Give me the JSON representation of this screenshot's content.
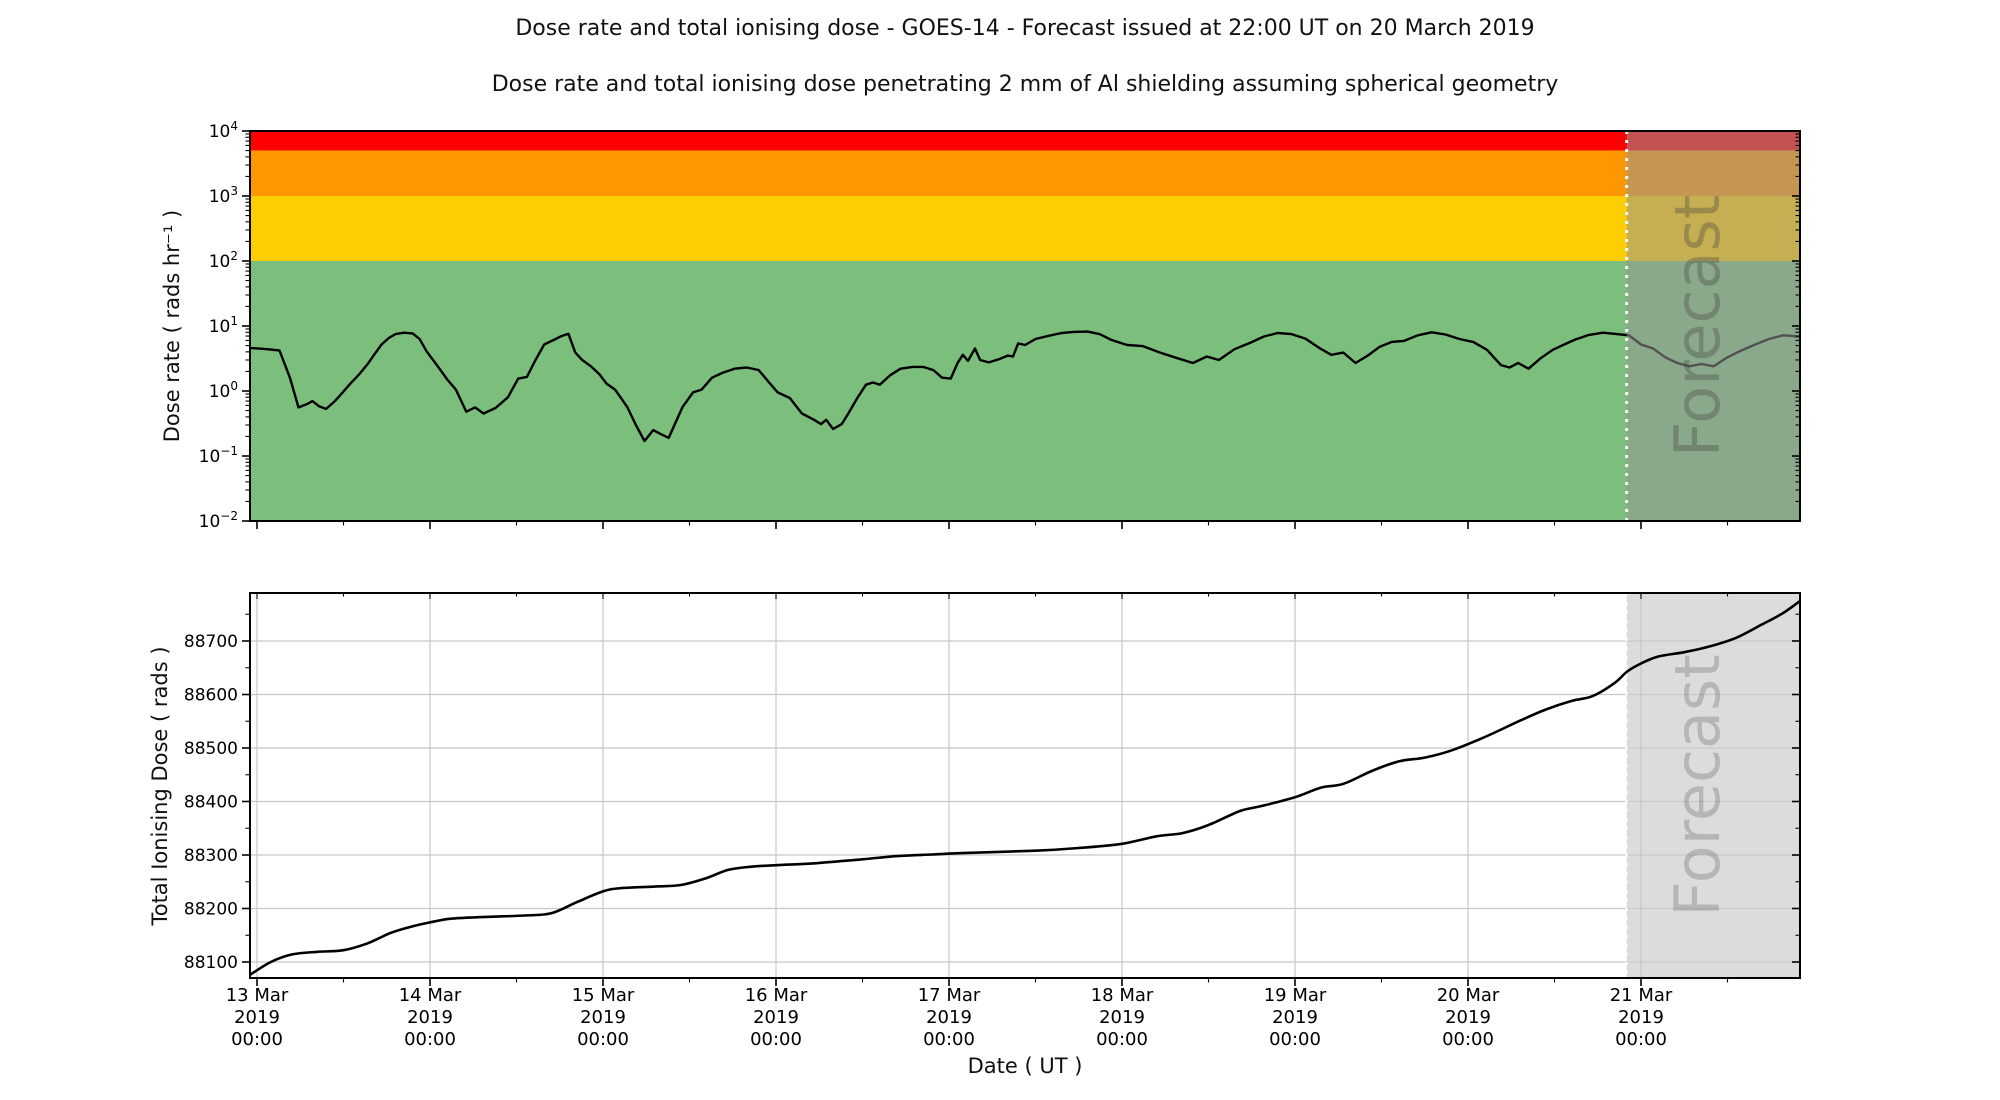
{
  "page": {
    "title": "Dose rate and total ionising dose - GOES-14 - Forecast issued at 22:00 UT on 20 March 2019",
    "subtitle": "Dose rate and total ionising dose penetrating 2 mm of Al shielding assuming spherical geometry"
  },
  "colors": {
    "band_red": "#ff0000",
    "band_orange": "#ff9800",
    "band_yellow": "#ffce00",
    "band_green": "#7cbe7c",
    "line": "#000000",
    "grid": "#c8c8c8",
    "forecast_overlay_top": "rgba(150,150,150,0.55)",
    "forecast_fill_bottom": "#dcdcdc",
    "forecast_divider": "#ffffff",
    "forecast_text_top": "rgba(64,64,64,0.33)",
    "forecast_text_bottom": "rgba(64,64,64,0.24)"
  },
  "forecast": {
    "label": "Forecast",
    "start_day": 7.917
  },
  "x_axis": {
    "label": "Date ( UT )",
    "start_day": -0.04,
    "end_day": 8.92,
    "tick_days": [
      0,
      1,
      2,
      3,
      4,
      5,
      6,
      7,
      8
    ],
    "tick_labels": [
      {
        "date": "13 Mar",
        "year": "2019",
        "time": "00:00"
      },
      {
        "date": "14 Mar",
        "year": "2019",
        "time": "00:00"
      },
      {
        "date": "15 Mar",
        "year": "2019",
        "time": "00:00"
      },
      {
        "date": "16 Mar",
        "year": "2019",
        "time": "00:00"
      },
      {
        "date": "17 Mar",
        "year": "2019",
        "time": "00:00"
      },
      {
        "date": "18 Mar",
        "year": "2019",
        "time": "00:00"
      },
      {
        "date": "19 Mar",
        "year": "2019",
        "time": "00:00"
      },
      {
        "date": "20 Mar",
        "year": "2019",
        "time": "00:00"
      },
      {
        "date": "21 Mar",
        "year": "2019",
        "time": "00:00"
      }
    ]
  },
  "chart_data": [
    {
      "type": "line",
      "panel": "dose_rate",
      "ylabel": "Dose rate ( rads hr⁻¹ )",
      "yscale": "log",
      "ylim": [
        0.01,
        10000
      ],
      "ytick_exponents": [
        "4",
        "3",
        "2",
        "1",
        "0",
        "−1",
        "−2"
      ],
      "grid": false,
      "bands": [
        {
          "name": "red",
          "from": 5000,
          "to": 10000
        },
        {
          "name": "orange",
          "from": 1000,
          "to": 5000
        },
        {
          "name": "yellow",
          "from": 100,
          "to": 1000
        },
        {
          "name": "green",
          "from": 0.01,
          "to": 100
        }
      ],
      "series": [
        {
          "name": "dose_rate",
          "x_days": [
            -0.04,
            0.06,
            0.13,
            0.19,
            0.24,
            0.29,
            0.32,
            0.36,
            0.4,
            0.45,
            0.49,
            0.54,
            0.59,
            0.64,
            0.68,
            0.72,
            0.76,
            0.8,
            0.85,
            0.9,
            0.94,
            0.98,
            1.04,
            1.1,
            1.15,
            1.21,
            1.26,
            1.31,
            1.38,
            1.45,
            1.51,
            1.56,
            1.61,
            1.66,
            1.72,
            1.76,
            1.8,
            1.84,
            1.88,
            1.93,
            1.98,
            2.02,
            2.07,
            2.14,
            2.19,
            2.24,
            2.29,
            2.33,
            2.38,
            2.46,
            2.52,
            2.57,
            2.63,
            2.69,
            2.76,
            2.83,
            2.9,
            2.96,
            3.01,
            3.08,
            3.15,
            3.22,
            3.26,
            3.29,
            3.33,
            3.38,
            3.42,
            3.47,
            3.52,
            3.56,
            3.6,
            3.66,
            3.72,
            3.79,
            3.85,
            3.91,
            3.96,
            4.01,
            4.05,
            4.08,
            4.11,
            4.15,
            4.18,
            4.23,
            4.29,
            4.34,
            4.37,
            4.4,
            4.44,
            4.5,
            4.57,
            4.65,
            4.72,
            4.8,
            4.87,
            4.94,
            5.03,
            5.12,
            5.22,
            5.32,
            5.41,
            5.49,
            5.56,
            5.65,
            5.74,
            5.82,
            5.9,
            5.98,
            6.06,
            6.14,
            6.21,
            6.28,
            6.35,
            6.42,
            6.49,
            6.56,
            6.63,
            6.71,
            6.79,
            6.87,
            6.95,
            7.03,
            7.11,
            7.19,
            7.24,
            7.29,
            7.35,
            7.42,
            7.49,
            7.55,
            7.62,
            7.7,
            7.78,
            7.86,
            7.93,
            8.0,
            8.07,
            8.14,
            8.21,
            8.28,
            8.35,
            8.42,
            8.5,
            8.58,
            8.66,
            8.74,
            8.82,
            8.88,
            8.92
          ],
          "values": [
            4.6,
            4.4,
            4.2,
            1.6,
            0.56,
            0.63,
            0.7,
            0.58,
            0.53,
            0.7,
            0.92,
            1.3,
            1.8,
            2.6,
            3.7,
            5.2,
            6.5,
            7.5,
            7.9,
            7.7,
            6.3,
            4.1,
            2.5,
            1.5,
            1.05,
            0.48,
            0.56,
            0.45,
            0.55,
            0.8,
            1.55,
            1.65,
            3.0,
            5.2,
            6.2,
            7.0,
            7.6,
            3.9,
            3.0,
            2.4,
            1.8,
            1.3,
            1.05,
            0.57,
            0.3,
            0.17,
            0.25,
            0.22,
            0.19,
            0.57,
            0.95,
            1.05,
            1.6,
            1.9,
            2.2,
            2.3,
            2.1,
            1.35,
            0.95,
            0.78,
            0.45,
            0.36,
            0.31,
            0.36,
            0.26,
            0.31,
            0.46,
            0.78,
            1.25,
            1.35,
            1.25,
            1.75,
            2.2,
            2.35,
            2.35,
            2.1,
            1.6,
            1.55,
            2.7,
            3.6,
            2.9,
            4.5,
            3.0,
            2.75,
            3.1,
            3.5,
            3.4,
            5.4,
            5.1,
            6.3,
            7.0,
            7.8,
            8.1,
            8.2,
            7.5,
            6.1,
            5.1,
            4.9,
            3.9,
            3.2,
            2.7,
            3.4,
            3.0,
            4.4,
            5.5,
            6.9,
            7.8,
            7.5,
            6.4,
            4.6,
            3.6,
            3.9,
            2.7,
            3.5,
            4.8,
            5.7,
            5.9,
            7.2,
            8.0,
            7.4,
            6.3,
            5.7,
            4.3,
            2.5,
            2.3,
            2.7,
            2.2,
            3.2,
            4.3,
            5.1,
            6.2,
            7.3,
            7.9,
            7.5,
            7.2,
            5.2,
            4.5,
            3.3,
            2.7,
            2.4,
            2.6,
            2.4,
            3.3,
            4.2,
            5.2,
            6.3,
            7.2,
            7.0,
            6.8
          ]
        }
      ]
    },
    {
      "type": "line",
      "panel": "total_dose",
      "ylabel": "Total Ionising Dose ( rads )",
      "xlabel": "Date ( UT )",
      "yscale": "linear",
      "ylim": [
        88070,
        88790
      ],
      "yticks": [
        88100,
        88200,
        88300,
        88400,
        88500,
        88600,
        88700
      ],
      "grid": true,
      "series": [
        {
          "name": "total_ionising_dose",
          "x_days": [
            -0.04,
            0.08,
            0.2,
            0.35,
            0.5,
            0.64,
            0.77,
            0.88,
            1.0,
            1.12,
            1.3,
            1.55,
            1.7,
            1.85,
            2.0,
            2.1,
            2.3,
            2.45,
            2.6,
            2.72,
            2.85,
            3.0,
            3.2,
            3.5,
            3.7,
            3.9,
            4.1,
            4.5,
            4.75,
            5.0,
            5.2,
            5.35,
            5.5,
            5.68,
            5.8,
            6.0,
            6.15,
            6.28,
            6.45,
            6.6,
            6.75,
            6.9,
            7.1,
            7.3,
            7.45,
            7.6,
            7.72,
            7.85,
            7.92,
            8.0,
            8.1,
            8.25,
            8.4,
            8.55,
            8.7,
            8.82,
            8.92
          ],
          "values": [
            88076,
            88100,
            88114,
            88119,
            88122,
            88135,
            88154,
            88165,
            88174,
            88181,
            88184,
            88187,
            88191,
            88212,
            88232,
            88238,
            88241,
            88244,
            88257,
            88272,
            88278,
            88281,
            88284,
            88292,
            88298,
            88301,
            88304,
            88308,
            88313,
            88321,
            88335,
            88341,
            88356,
            88382,
            88391,
            88408,
            88426,
            88433,
            88458,
            88475,
            88482,
            88495,
            88521,
            88551,
            88572,
            88588,
            88597,
            88622,
            88643,
            88658,
            88671,
            88679,
            88690,
            88706,
            88731,
            88752,
            88775
          ]
        }
      ]
    }
  ]
}
